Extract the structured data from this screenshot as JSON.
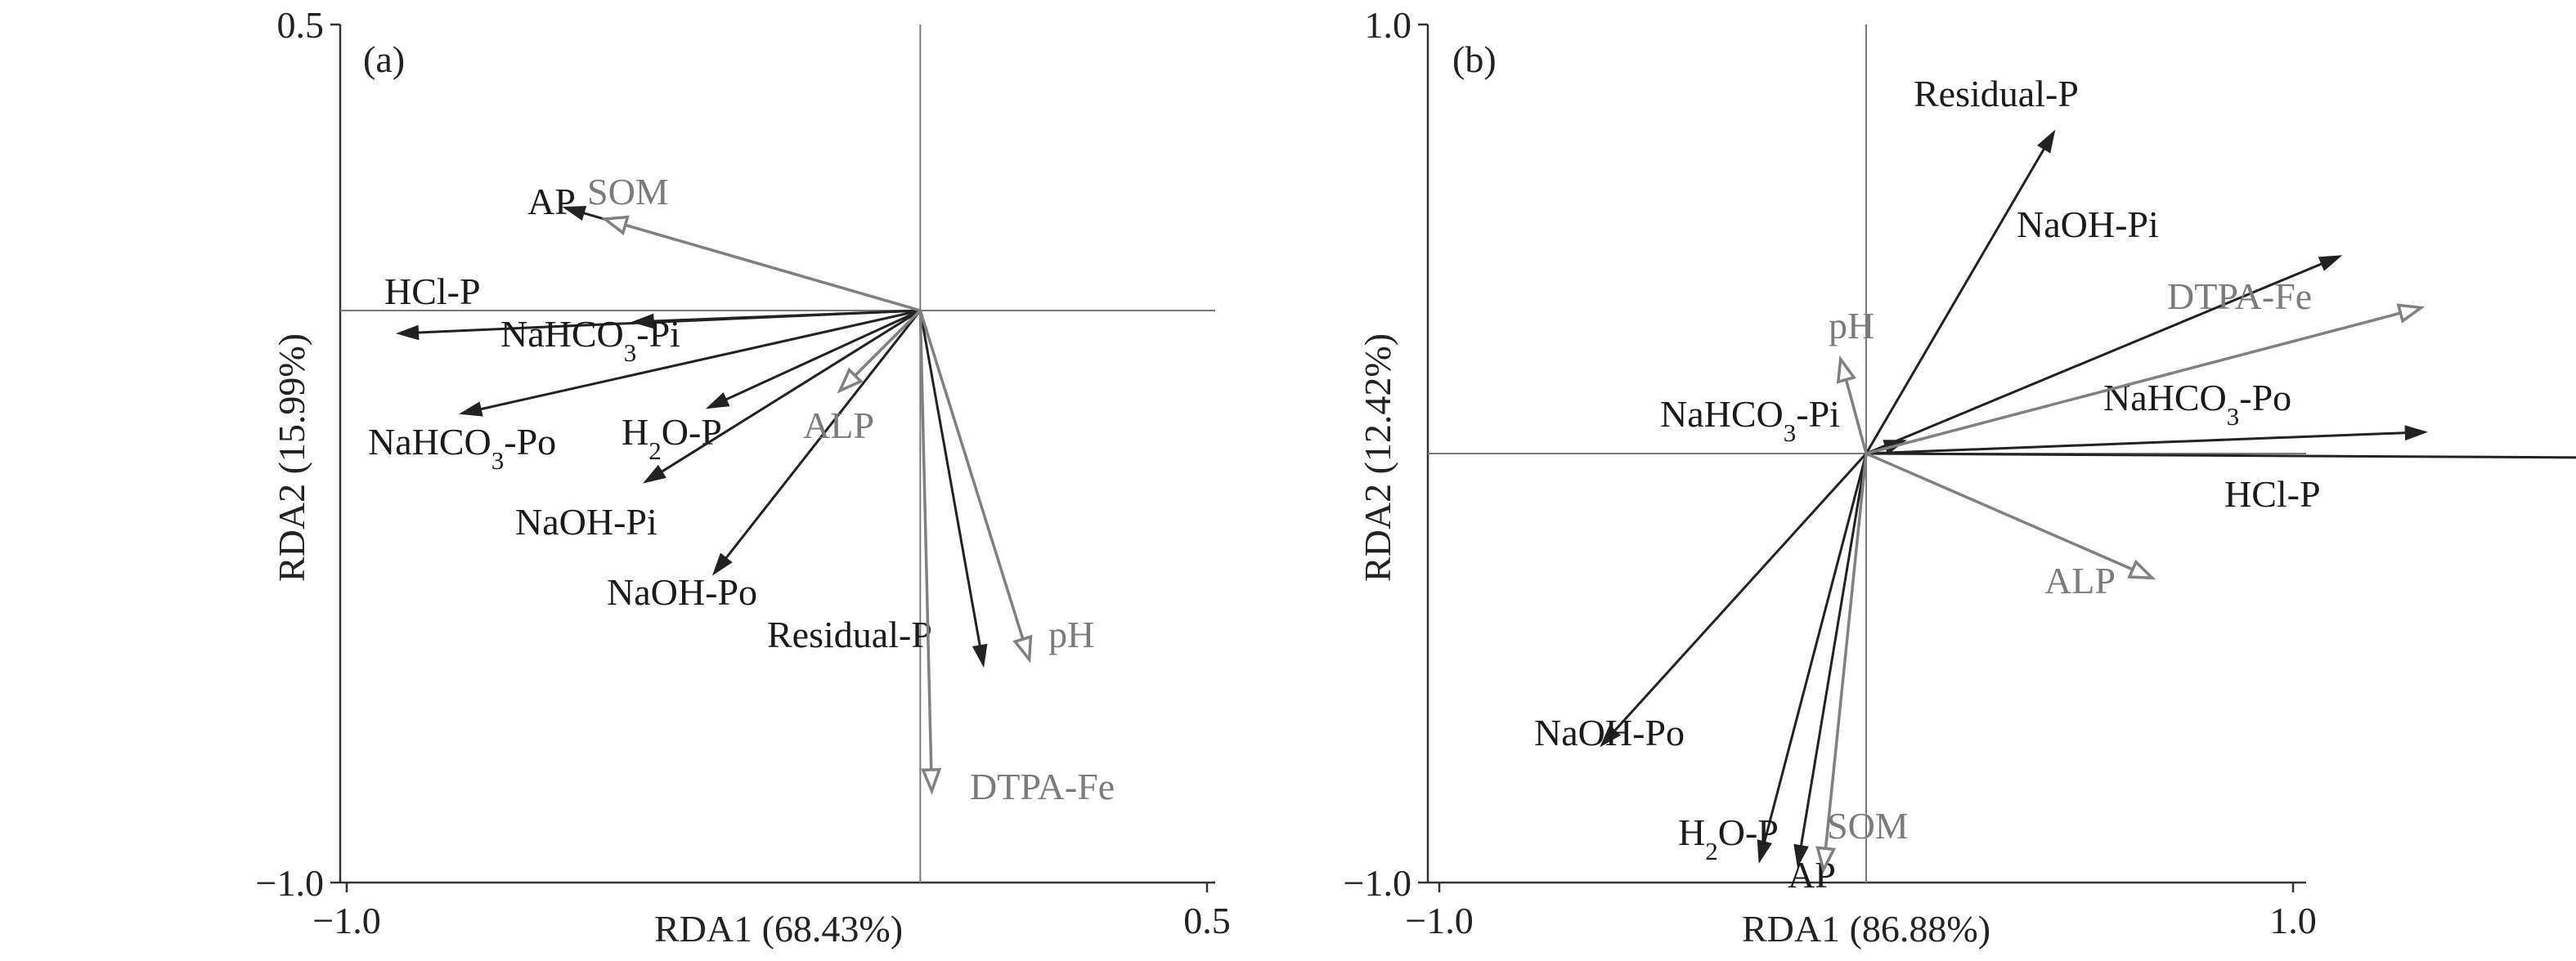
{
  "chart_data": [
    {
      "type": "biplot",
      "panel_label": "(a)",
      "xlabel": "RDA1 (68.43%)",
      "ylabel": "RDA2 (15.99%)",
      "xlim": [
        -1.0,
        0.5
      ],
      "ylim": [
        -1.0,
        0.5
      ],
      "xticks": [
        -1.0,
        0.5
      ],
      "yticks": [
        -1.0,
        0.5
      ],
      "xtick_labels": [
        "−1.0",
        "0.5"
      ],
      "ytick_labels": [
        "−1.0",
        "0.5"
      ],
      "zero_lines": true,
      "series": [
        {
          "kind": "response",
          "color": "#222222",
          "arrowhead": "filled",
          "vectors": [
            {
              "label": "AP",
              "x": -0.62,
              "y": 0.18
            },
            {
              "label": "HCl-P",
              "x": -0.91,
              "y": -0.04
            },
            {
              "label": "NaHCO₃-Pi",
              "x": -0.5,
              "y": -0.02
            },
            {
              "label": "NaHCO₃-Po",
              "x": -0.8,
              "y": -0.18
            },
            {
              "label": "H₂O-P",
              "x": -0.37,
              "y": -0.17
            },
            {
              "label": "NaOH-Pi",
              "x": -0.48,
              "y": -0.3
            },
            {
              "label": "NaOH-Po",
              "x": -0.36,
              "y": -0.46
            },
            {
              "label": "Residual-P",
              "x": 0.11,
              "y": -0.62
            }
          ]
        },
        {
          "kind": "explanatory",
          "color": "#808080",
          "arrowhead": "open",
          "vectors": [
            {
              "label": "SOM",
              "x": -0.55,
              "y": 0.16
            },
            {
              "label": "ALP",
              "x": -0.14,
              "y": -0.14
            },
            {
              "label": "pH",
              "x": 0.19,
              "y": -0.61
            },
            {
              "label": "DTPA-Fe",
              "x": 0.02,
              "y": -0.84
            }
          ]
        }
      ]
    },
    {
      "type": "biplot",
      "panel_label": "(b)",
      "xlabel": "RDA1 (86.88%)",
      "ylabel": "RDA2 (12.42%)",
      "xlim": [
        -1.0,
        1.0
      ],
      "ylim": [
        -1.0,
        1.0
      ],
      "xticks": [
        -1.0,
        1.0
      ],
      "yticks": [
        -1.0,
        1.0
      ],
      "xtick_labels": [
        "−1.0",
        "1.0"
      ],
      "ytick_labels": [
        "−1.0",
        "1.0"
      ],
      "zero_lines": true,
      "series": [
        {
          "kind": "response",
          "color": "#222222",
          "arrowhead": "filled",
          "vectors": [
            {
              "label": "Residual-P",
              "x": 0.44,
              "y": 0.75
            },
            {
              "label": "NaOH-Pi",
              "x": 1.11,
              "y": 0.46
            },
            {
              "label": "NaHCO₃-Pi",
              "x": 0.09,
              "y": 0.03
            },
            {
              "label": "NaHCO₃-Po",
              "x": 1.31,
              "y": 0.05
            },
            {
              "label": "HCl-P",
              "x": 1.8,
              "y": -0.01
            },
            {
              "label": "NaOH-Po",
              "x": -0.62,
              "y": -0.68
            },
            {
              "label": "H₂O-P",
              "x": -0.25,
              "y": -0.95
            },
            {
              "label": "AP",
              "x": -0.16,
              "y": -0.96
            }
          ]
        },
        {
          "kind": "explanatory",
          "color": "#808080",
          "arrowhead": "open",
          "vectors": [
            {
              "label": "pH",
              "x": -0.06,
              "y": 0.22
            },
            {
              "label": "DTPA-Fe",
              "x": 1.3,
              "y": 0.34
            },
            {
              "label": "ALP",
              "x": 0.67,
              "y": -0.29
            },
            {
              "label": "SOM",
              "x": -0.1,
              "y": -0.97
            }
          ]
        }
      ]
    }
  ]
}
